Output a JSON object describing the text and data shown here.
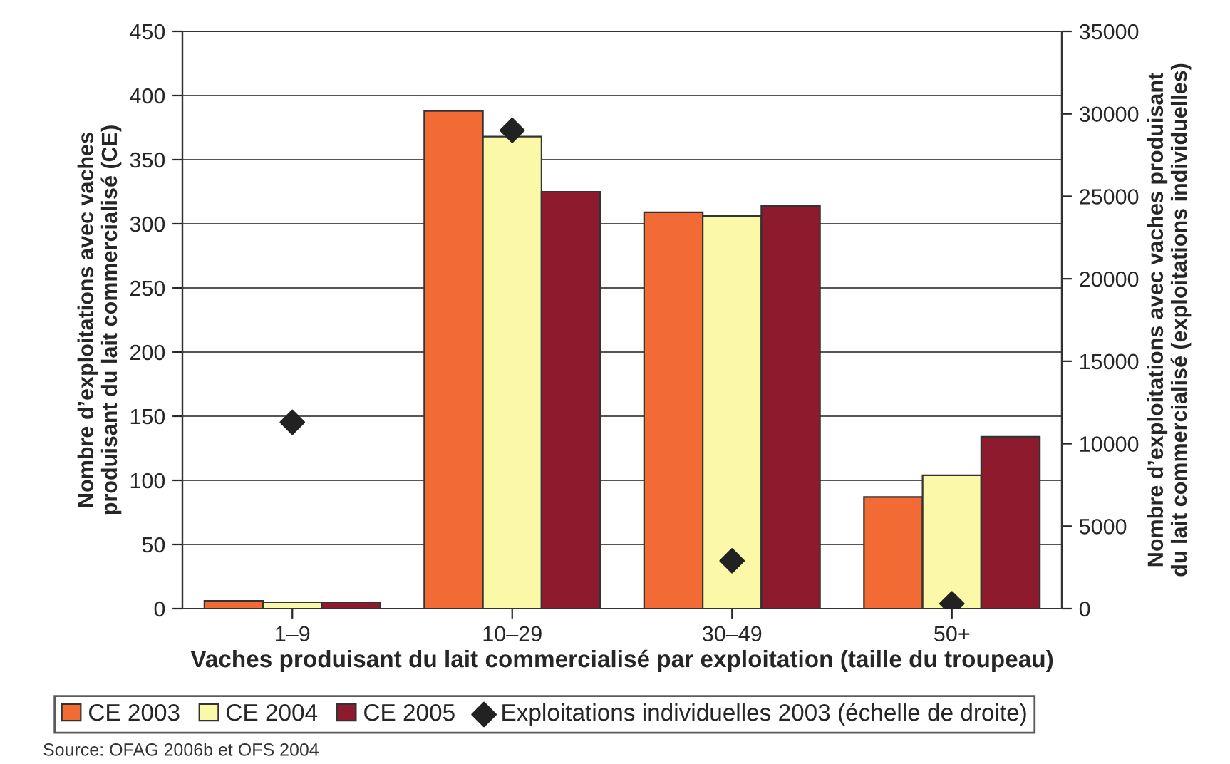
{
  "chart_data": {
    "type": "bar",
    "xlabel": "Vaches produisant du lait commercialisé par exploitation (taille du troupeau)",
    "ylabel": "Nombre d’exploitations avec vaches\nproduisant du lait commercialisé (CE)",
    "y2label": "Nombre d’exploitations avec vaches produisant\ndu lait commercialisé (exploitations individuelles)",
    "categories": [
      "1–9",
      "10–29",
      "30–49",
      "50+"
    ],
    "series": [
      {
        "name": "CE 2003",
        "color": "#f26b35",
        "values": [
          6,
          388,
          309,
          87
        ]
      },
      {
        "name": "CE 2004",
        "color": "#fbf8a8",
        "values": [
          5,
          368,
          306,
          104
        ]
      },
      {
        "name": "CE 2005",
        "color": "#8e1a2e",
        "values": [
          5,
          325,
          314,
          134
        ]
      },
      {
        "name": "Exploitations individuelles 2003 (échelle de droite)",
        "type": "scatter",
        "axis": "y2",
        "color": "#222222",
        "marker": "diamond",
        "values": [
          11300,
          29000,
          2900,
          300
        ]
      }
    ],
    "ylim": [
      0,
      450
    ],
    "yticks": [
      0,
      50,
      100,
      150,
      200,
      250,
      300,
      350,
      400,
      450
    ],
    "y2lim": [
      0,
      35000
    ],
    "y2ticks": [
      0,
      5000,
      10000,
      15000,
      20000,
      25000,
      30000,
      35000
    ],
    "grid": "y",
    "legend": "bottom",
    "annotations": [
      "Source: OFAG 2006b et OFS 2004"
    ]
  }
}
